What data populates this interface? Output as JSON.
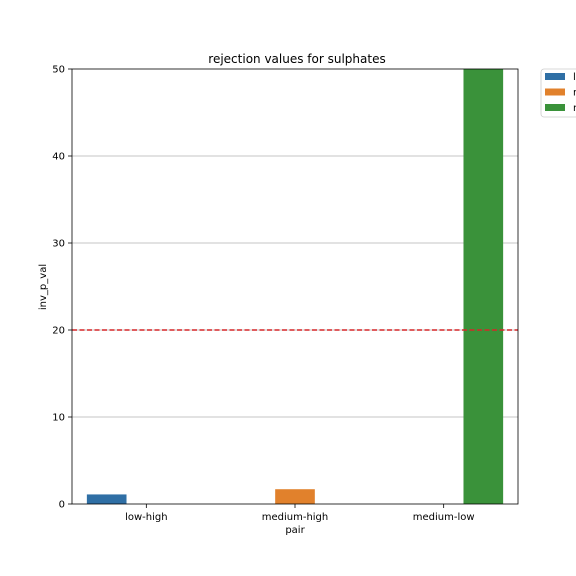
{
  "chart_data": {
    "type": "bar",
    "title": "rejection values for sulphates",
    "xlabel": "pair",
    "ylabel": "inv_p_val",
    "categories": [
      "low-high",
      "medium-high",
      "medium-low"
    ],
    "series": [
      {
        "name": "l",
        "color": "#2f6fa5",
        "values": [
          1.1,
          null,
          null
        ]
      },
      {
        "name": "m",
        "color": "#e1812c",
        "values": [
          null,
          1.7,
          null
        ]
      },
      {
        "name": "m",
        "color": "#3a923a",
        "values": [
          null,
          null,
          50
        ]
      }
    ],
    "ylim": [
      0,
      50
    ],
    "yticks": [
      0,
      10,
      20,
      30,
      40,
      50
    ],
    "grid": "horizontal",
    "threshold": {
      "value": 20,
      "color": "#d62728",
      "style": "dashed"
    },
    "legend_position": "outside upper right"
  }
}
